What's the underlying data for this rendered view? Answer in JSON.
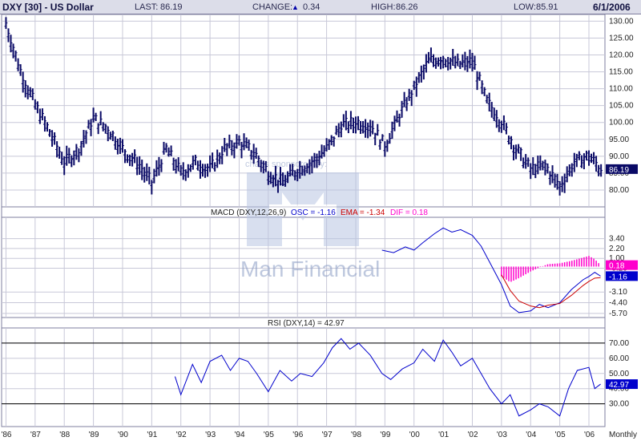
{
  "header": {
    "symbol": "DXY [30] - US Dollar",
    "last_label": "LAST:",
    "last": "86.19",
    "change_label": "CHANGE:",
    "change_arrow": "▲",
    "change": "0.34",
    "high_label": "HIGH:",
    "high": "86.26",
    "low_label": "LOW:",
    "low": "85.91",
    "date": "6/1/2006"
  },
  "watermark": {
    "line1": "charts sponsored by:",
    "line2": "Man Financial"
  },
  "colors": {
    "price_bar": "#0a0a66",
    "macd": "#0000cc",
    "ema": "#cc0000",
    "dif": "#ff00cc",
    "rsi": "#0000cc",
    "frame": "#7f7f9f",
    "grid": "#c8c8d8"
  },
  "chart_data": [
    {
      "type": "ohlc",
      "panel": "price",
      "ylim": [
        75,
        132
      ],
      "y_ticks": [
        "130.00",
        "125.00",
        "120.00",
        "115.00",
        "110.00",
        "105.00",
        "100.00",
        "95.00",
        "90.00",
        "85.00",
        "80.00"
      ],
      "last_value_tag": "86.19",
      "x": [
        1986.0,
        1986.5,
        1987.0,
        1987.5,
        1988.0,
        1988.5,
        1989.0,
        1989.5,
        1990.0,
        1990.5,
        1991.0,
        1991.5,
        1992.0,
        1992.5,
        1993.0,
        1993.5,
        1994.0,
        1994.5,
        1995.0,
        1995.5,
        1996.0,
        1996.5,
        1997.0,
        1997.5,
        1998.0,
        1998.5,
        1999.0,
        1999.5,
        2000.0,
        2000.5,
        2001.0,
        2001.5,
        2002.0,
        2002.5,
        2003.0,
        2003.5,
        2004.0,
        2004.5,
        2005.0,
        2005.5,
        2006.0,
        2006.4
      ],
      "y": [
        129,
        115,
        105,
        97,
        88,
        92,
        101,
        98,
        92,
        88,
        82,
        92,
        85,
        88,
        86,
        92,
        94,
        91,
        85,
        82,
        86,
        88,
        92,
        99,
        100,
        99,
        93,
        102,
        110,
        118,
        119,
        117,
        118,
        106,
        100,
        92,
        86,
        87,
        81,
        88,
        90,
        86
      ]
    },
    {
      "type": "line",
      "panel": "macd",
      "title": "MACD (DXY,12,26,9)",
      "osc_label": "OSC = -1.16",
      "ema_label": "EMA = -1.34",
      "dif_label": "DIF = 0.18",
      "ylim": [
        -6.2,
        6.0
      ],
      "y_ticks": [
        "3.40",
        "2.20",
        "1.00",
        "-0.20",
        "-3.10",
        "-4.40",
        "-5.70"
      ],
      "tags": {
        "dif": "0.18",
        "osc": "-1.16"
      },
      "series": [
        {
          "name": "OSC",
          "x": [
            1998.9,
            1999.3,
            1999.7,
            2000.0,
            2000.3,
            2000.7,
            2001.0,
            2001.3,
            2001.6,
            2002.0,
            2002.3,
            2002.6,
            2003.0,
            2003.3,
            2003.6,
            2004.0,
            2004.3,
            2004.6,
            2005.0,
            2005.4,
            2005.8,
            2006.0,
            2006.2,
            2006.4
          ],
          "y": [
            2.0,
            1.7,
            2.4,
            2.0,
            2.9,
            4.0,
            4.7,
            4.2,
            4.5,
            3.8,
            2.5,
            0.5,
            -2.2,
            -4.8,
            -5.6,
            -5.4,
            -4.6,
            -5.0,
            -4.4,
            -2.8,
            -1.6,
            -1.2,
            -0.7,
            -1.16
          ]
        },
        {
          "name": "EMA",
          "x": [
            2003.0,
            2003.3,
            2003.6,
            2004.0,
            2004.3,
            2004.6,
            2005.0,
            2005.4,
            2005.8,
            2006.0,
            2006.2,
            2006.4
          ],
          "y": [
            -1.0,
            -2.9,
            -4.2,
            -4.8,
            -5.0,
            -4.7,
            -4.5,
            -3.5,
            -2.3,
            -1.8,
            -1.4,
            -1.34
          ]
        },
        {
          "name": "DIF",
          "type": "histogram",
          "x": [
            2003.0,
            2003.3,
            2003.6,
            2004.0,
            2004.3,
            2004.6,
            2005.0,
            2005.4,
            2005.8,
            2006.0,
            2006.2,
            2006.4
          ],
          "y": [
            -1.2,
            -1.9,
            -1.4,
            -0.6,
            -0.1,
            0.3,
            0.4,
            0.7,
            1.1,
            1.3,
            0.9,
            0.18
          ]
        }
      ]
    },
    {
      "type": "line",
      "panel": "rsi",
      "title": "RSI (DXY,14) = 42.97",
      "ylim": [
        15,
        80
      ],
      "y_ticks": [
        "70.00",
        "60.00",
        "50.00",
        "40.00",
        "30.00"
      ],
      "reference_lines": [
        70,
        30
      ],
      "last_value_tag": "42.97",
      "x": [
        1991.8,
        1992.0,
        1992.4,
        1992.7,
        1993.0,
        1993.4,
        1993.7,
        1994.0,
        1994.3,
        1994.6,
        1995.0,
        1995.4,
        1995.8,
        1996.1,
        1996.5,
        1996.9,
        1997.2,
        1997.5,
        1997.8,
        1998.1,
        1998.5,
        1998.9,
        1999.2,
        1999.6,
        2000.0,
        2000.3,
        2000.7,
        2001.0,
        2001.3,
        2001.6,
        2002.0,
        2002.3,
        2002.6,
        2003.0,
        2003.3,
        2003.6,
        2004.0,
        2004.3,
        2004.6,
        2005.0,
        2005.3,
        2005.6,
        2006.0,
        2006.2,
        2006.4
      ],
      "y": [
        48,
        36,
        56,
        44,
        58,
        62,
        52,
        60,
        58,
        50,
        38,
        52,
        45,
        50,
        48,
        57,
        67,
        73,
        66,
        70,
        62,
        50,
        46,
        53,
        57,
        66,
        58,
        72,
        64,
        55,
        60,
        50,
        40,
        30,
        36,
        22,
        26,
        30,
        28,
        22,
        40,
        52,
        54,
        40,
        42.97
      ]
    }
  ],
  "x_axis": {
    "ticks": [
      "'86",
      "'87",
      "'88",
      "'89",
      "'90",
      "'91",
      "'92",
      "'93",
      "'94",
      "'95",
      "'96",
      "'97",
      "'98",
      "'99",
      "'00",
      "'01",
      "'02",
      "'03",
      "'04",
      "'05",
      "'06"
    ],
    "xlim": [
      1985.85,
      2006.55
    ],
    "period_label": "Monthly"
  }
}
